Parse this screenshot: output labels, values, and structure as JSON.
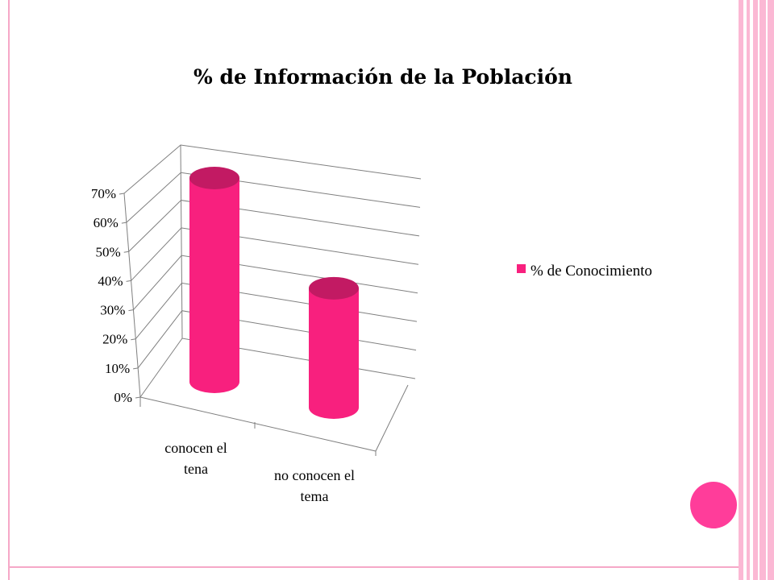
{
  "colors": {
    "accent": "#ff3d9a",
    "bar_fill": "#f8207e",
    "bar_top": "#c21a63",
    "frame": "#f6a8c8",
    "stripe": "#fbb8d4"
  },
  "decor": {
    "dot_icon": "pink-circle-icon"
  },
  "chart_data": {
    "type": "bar",
    "style": "3d-cylinder",
    "title": "% de Información de la Población",
    "categories": [
      "conocen el\ntena",
      "no conocen el\ntema"
    ],
    "series": [
      {
        "name": "% de Conocimiento",
        "values": [
          0.7,
          0.41
        ]
      }
    ],
    "ylim": [
      0,
      0.7
    ],
    "yticks": [
      "0%",
      "10%",
      "20%",
      "30%",
      "40%",
      "50%",
      "60%",
      "70%"
    ],
    "grid": true,
    "legend_position": "right"
  }
}
